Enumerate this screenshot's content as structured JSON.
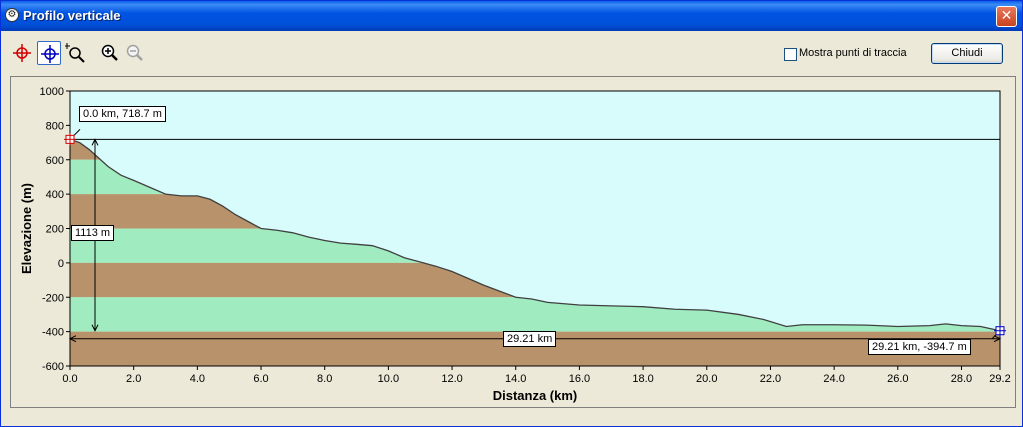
{
  "window": {
    "title": "Profilo verticale",
    "close_glyph": "✕",
    "app_icon": "gear-icon"
  },
  "toolbar": {
    "tools": [
      {
        "name": "red-crosshair-tool-icon",
        "icon": "crosshair",
        "color": "#d40000",
        "pressed": false
      },
      {
        "name": "blue-crosshair-tool-icon",
        "icon": "crosshair",
        "color": "#0000c0",
        "pressed": true
      },
      {
        "name": "zoom-region-tool-icon",
        "icon": "zoom-region",
        "color": "#000000",
        "pressed": false
      },
      {
        "name": "zoom-in-icon",
        "icon": "zoom-in",
        "color": "#000000",
        "pressed": false
      },
      {
        "name": "zoom-out-icon",
        "icon": "zoom-out",
        "color": "#a0a0a0",
        "pressed": false
      }
    ],
    "checkbox_label": "Mostra punti di traccia",
    "checkbox_checked": false,
    "close_label": "Chiudi"
  },
  "annotations": {
    "start_label": "0.0 km, 718.7 m",
    "end_label": "29.21 km, -394.7 m",
    "elevation_diff_label": "1113 m",
    "distance_label": "29.21 km"
  },
  "chart_data": {
    "type": "area",
    "xlabel": "Distanza  (km)",
    "ylabel": "Elevazione (m)",
    "xlim": [
      0,
      29.21
    ],
    "ylim": [
      -600,
      1000
    ],
    "x_ticks": [
      "0.0",
      "2.0",
      "4.0",
      "6.0",
      "8.0",
      "10.0",
      "12.0",
      "14.0",
      "16.0",
      "18.0",
      "20.0",
      "22.0",
      "24.0",
      "26.0",
      "28.0",
      "29.2"
    ],
    "x_tick_values": [
      0,
      2,
      4,
      6,
      8,
      10,
      12,
      14,
      16,
      18,
      20,
      22,
      24,
      26,
      28,
      29.21
    ],
    "y_ticks": [
      "1000",
      "800",
      "600",
      "400",
      "200",
      "0",
      "-200",
      "-400",
      "-600"
    ],
    "y_tick_values": [
      1000,
      800,
      600,
      400,
      200,
      0,
      -200,
      -400,
      -600
    ],
    "band_colors": {
      "green": "#a0ecc0",
      "brown": "#b8926a",
      "sky": "#d8fcfc",
      "line": "#404040"
    },
    "bands": [
      {
        "from": 600,
        "to": 800,
        "color": "brown"
      },
      {
        "from": 400,
        "to": 600,
        "color": "green"
      },
      {
        "from": 200,
        "to": 400,
        "color": "brown"
      },
      {
        "from": 0,
        "to": 200,
        "color": "green"
      },
      {
        "from": -200,
        "to": 0,
        "color": "brown"
      },
      {
        "from": -400,
        "to": -200,
        "color": "green"
      },
      {
        "from": -600,
        "to": -400,
        "color": "brown"
      }
    ],
    "x": [
      0,
      0.3,
      0.6,
      0.9,
      1.2,
      1.6,
      2.0,
      2.5,
      3.0,
      3.5,
      4.0,
      4.4,
      4.8,
      5.2,
      5.6,
      6.0,
      6.5,
      7.0,
      7.5,
      8.0,
      8.5,
      9.0,
      9.5,
      10.0,
      10.5,
      11.0,
      11.5,
      12.0,
      12.5,
      13.0,
      13.5,
      14.0,
      14.5,
      15.0,
      16.0,
      17.0,
      18.0,
      19.0,
      20.0,
      21.0,
      21.8,
      22.5,
      23.0,
      24.0,
      25.0,
      26.0,
      27.0,
      27.5,
      28.0,
      28.6,
      29.21
    ],
    "y": [
      718.7,
      700,
      660,
      610,
      560,
      510,
      480,
      440,
      400,
      390,
      390,
      370,
      330,
      280,
      240,
      200,
      190,
      175,
      150,
      130,
      115,
      108,
      100,
      70,
      30,
      5,
      -20,
      -50,
      -90,
      -130,
      -165,
      -200,
      -210,
      -230,
      -245,
      -250,
      -255,
      -270,
      -275,
      -300,
      -330,
      -370,
      -360,
      -360,
      -362,
      -370,
      -365,
      -355,
      -365,
      -370,
      -394.7
    ]
  }
}
